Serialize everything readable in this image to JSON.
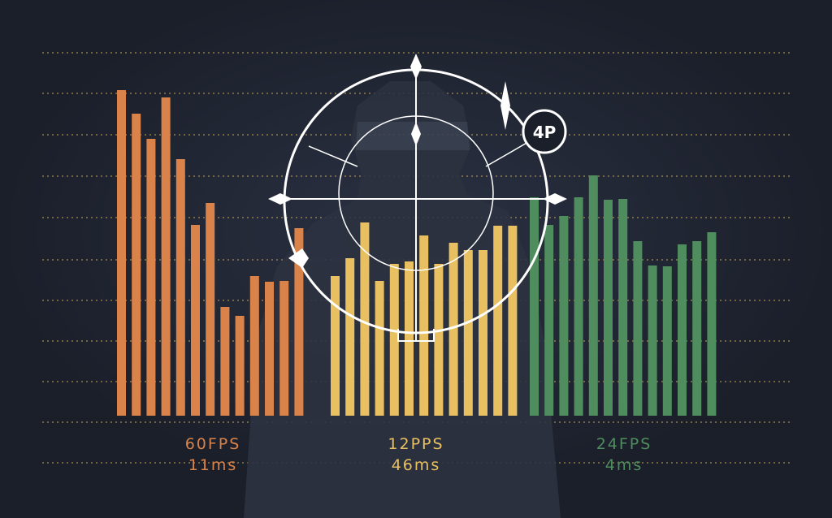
{
  "chart_data": {
    "type": "bar",
    "ylim": [
      0,
      400
    ],
    "grid": true,
    "groups": [
      {
        "fps_label": "60FPS",
        "ms_label": "11ms",
        "color": "#d9824a",
        "values": [
          401,
          372,
          341,
          392,
          316,
          235,
          262,
          134,
          123,
          172,
          165,
          166,
          231
        ]
      },
      {
        "fps_label": "12PPS",
        "ms_label": "46ms",
        "color": "#e8c061",
        "values": [
          172,
          194,
          238,
          166,
          187,
          190,
          222,
          187,
          213,
          204,
          204,
          234,
          234
        ]
      },
      {
        "fps_label": "24FPS",
        "ms_label": "4ms",
        "color": "#4f8c5e",
        "values": [
          269,
          235,
          246,
          269,
          296,
          266,
          267,
          215,
          185,
          184,
          211,
          215,
          226
        ]
      }
    ]
  },
  "crosshair": {
    "badge_label": "4P"
  }
}
